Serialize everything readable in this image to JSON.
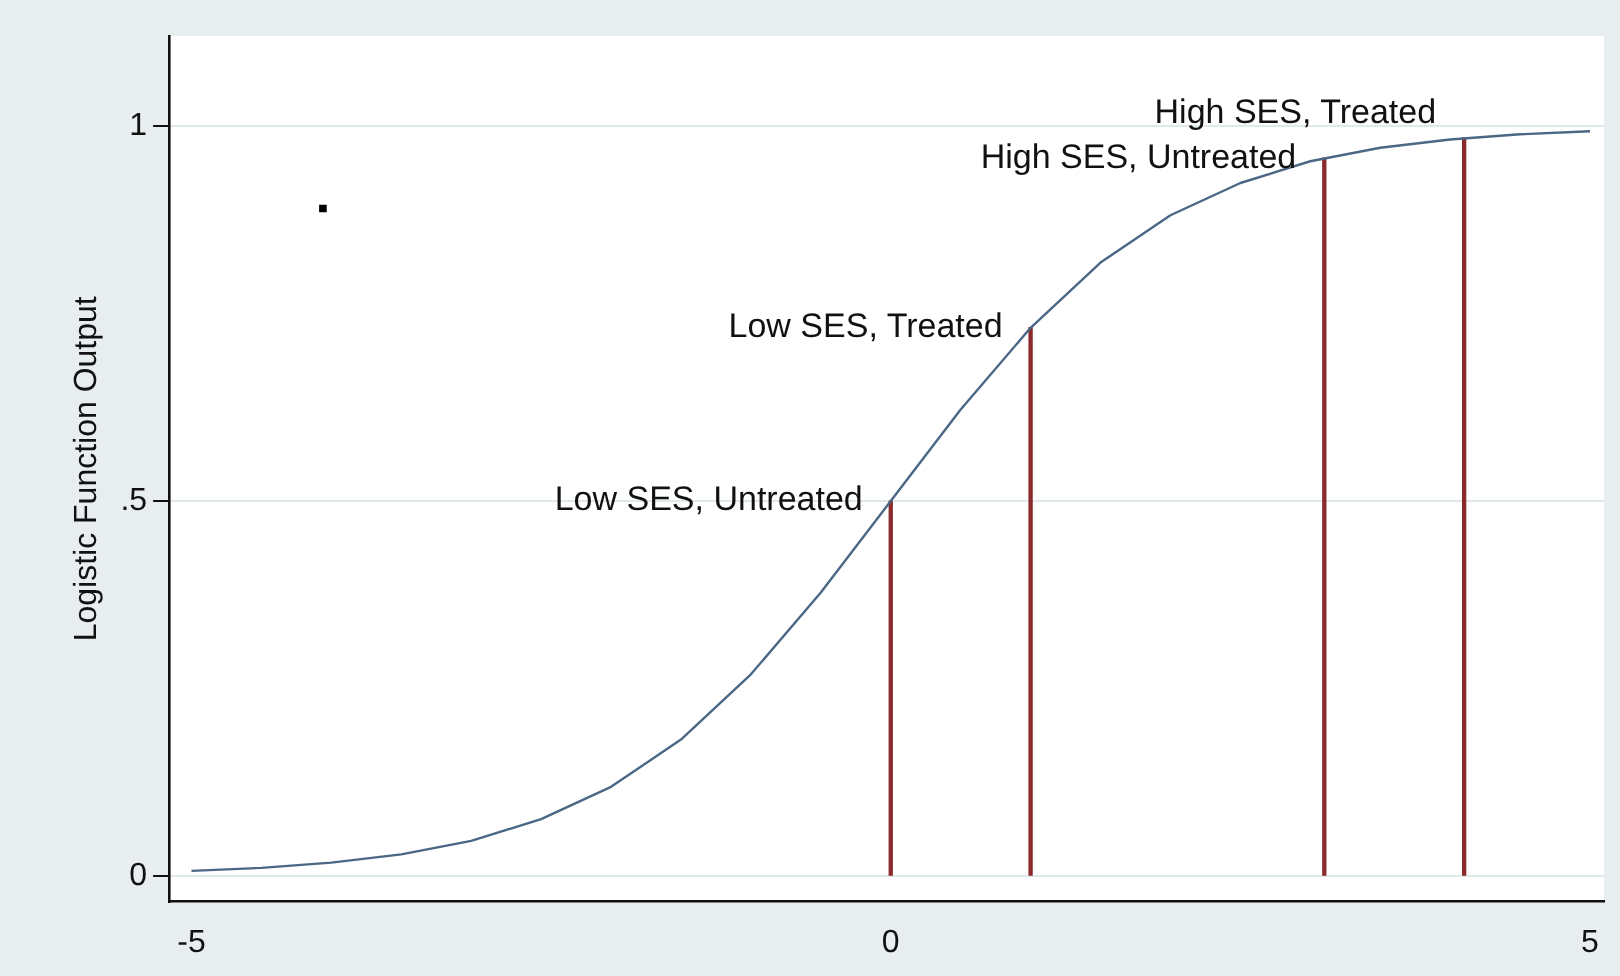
{
  "chart_data": {
    "type": "line",
    "ylabel": "Logistic Function Output",
    "xlim": [
      -5.16,
      5.1
    ],
    "ylim": [
      -0.034,
      1.12
    ],
    "xticks": [
      -5,
      0,
      5
    ],
    "yticks": [
      0,
      {
        "value": 0.5,
        "label": ".5"
      },
      1
    ],
    "grid": "y",
    "legend": false,
    "line_style": "solid",
    "series": [
      {
        "marker": "none",
        "color": "#4a6785",
        "x": [
          -5,
          -4.5,
          -4,
          -3.5,
          -3,
          -2.5,
          -2,
          -1.5,
          -1,
          -0.5,
          0,
          0.5,
          1,
          1.5,
          2,
          2.5,
          3,
          3.5,
          4,
          4.5,
          5
        ],
        "values": [
          0.007,
          0.011,
          0.018,
          0.029,
          0.047,
          0.076,
          0.119,
          0.182,
          0.269,
          0.378,
          0.5,
          0.622,
          0.731,
          0.818,
          0.881,
          0.924,
          0.953,
          0.971,
          0.982,
          0.989,
          0.993
        ]
      },
      {
        "type": "bar",
        "color": "#8b2a2a",
        "x": [
          0,
          1,
          3.1,
          4.1
        ],
        "values": [
          0.5,
          0.731,
          0.957,
          0.984
        ]
      },
      {
        "type": "scatter",
        "marker": "square",
        "color": "#000000",
        "x": [
          -4.06
        ],
        "values": [
          0.89
        ]
      }
    ],
    "annotations": [
      {
        "text": "Low SES, Untreated",
        "x": 0,
        "y": 0.5
      },
      {
        "text": "Low SES, Treated",
        "x": 1,
        "y": 0.731
      },
      {
        "text": "High SES, Untreated",
        "x": 3.1,
        "y": 0.957
      },
      {
        "text": "High SES, Treated",
        "x": 4.1,
        "y": 0.984
      }
    ]
  }
}
